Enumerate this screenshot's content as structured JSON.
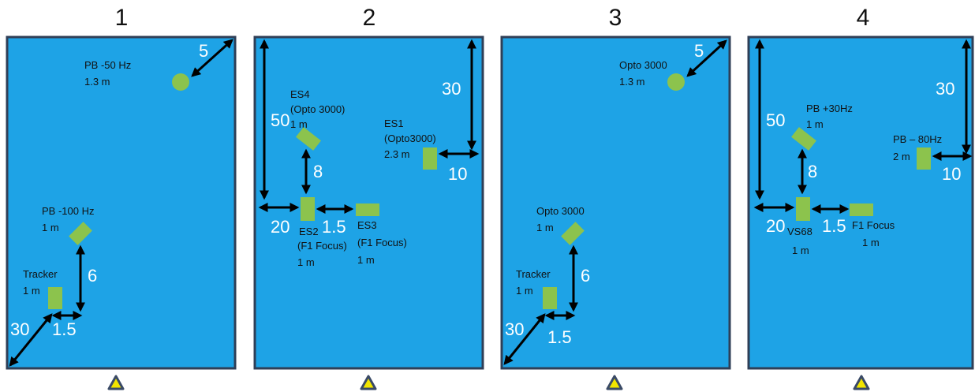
{
  "panels": [
    {
      "title": "1",
      "labels": {
        "pb": "PB -50 Hz",
        "pb_dist": "1.3 m",
        "pb2": "PB -100 Hz",
        "pb2_dist": "1 m",
        "tracker": "Tracker",
        "tracker_dist": "1 m"
      },
      "dims": {
        "d5": "5",
        "d6": "6",
        "d30": "30",
        "d15": "1.5"
      }
    },
    {
      "title": "2",
      "labels": {
        "es4": "ES4",
        "es4_sub": "(Opto 3000)",
        "es4_dist": "1 m",
        "es1": "ES1",
        "es1_sub": "(Opto3000)",
        "es1_dist": "2.3 m",
        "es2": "ES2",
        "es2_sub": "(F1 Focus)",
        "es2_dist": "1 m",
        "es3": "ES3",
        "es3_sub": "(F1 Focus)",
        "es3_dist": "1 m"
      },
      "dims": {
        "d50": "50",
        "d30": "30",
        "d8": "8",
        "d10": "10",
        "d20": "20",
        "d15": "1.5"
      }
    },
    {
      "title": "3",
      "labels": {
        "opto_top": "Opto 3000",
        "opto_top_dist": "1.3 m",
        "opto": "Opto 3000",
        "opto_dist": "1 m",
        "tracker": "Tracker",
        "tracker_dist": "1 m"
      },
      "dims": {
        "d5": "5",
        "d6": "6",
        "d30": "30",
        "d15": "1.5"
      }
    },
    {
      "title": "4",
      "labels": {
        "pb30": "PB +30Hz",
        "pb30_dist": "1 m",
        "pb80": "PB – 80Hz",
        "pb80_dist": "2 m",
        "vs68": "VS68",
        "vs68_dist": "1 m",
        "f1": "F1 Focus",
        "f1_dist": "1 m"
      },
      "dims": {
        "d50": "50",
        "d30": "30",
        "d8": "8",
        "d10": "10",
        "d20": "20",
        "d15": "1.5"
      }
    }
  ],
  "colors": {
    "field": "#1ea3e6",
    "border": "#2f3f57",
    "marker": "#8cc34d",
    "arrow": "#000000",
    "dim_text": "#ffffff",
    "label_text": "#111111",
    "triangle_fill": "#f2e500",
    "triangle_stroke": "#3a4a66"
  }
}
